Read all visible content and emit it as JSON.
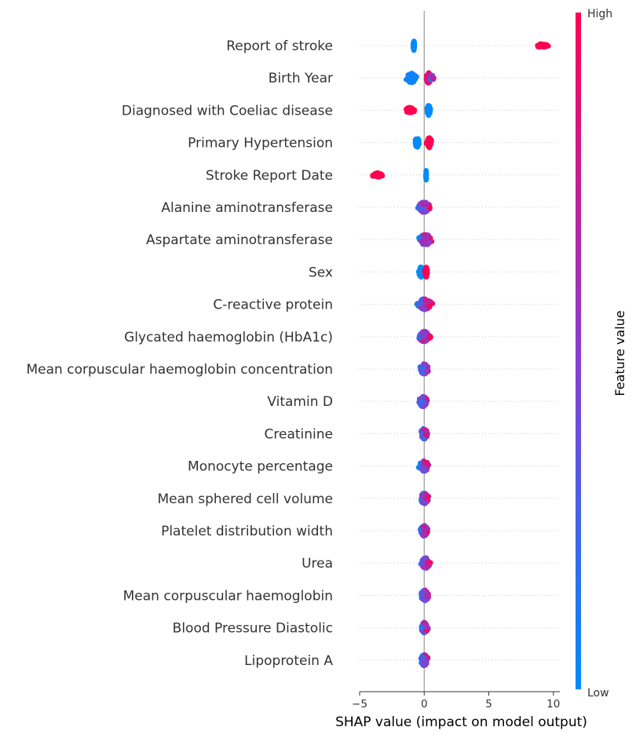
{
  "chart_data": {
    "type": "scatter",
    "subtype": "shap-beeswarm",
    "xlabel": "SHAP value (impact on model output)",
    "xlim": [
      -5,
      10.5
    ],
    "xticks": [
      -5,
      0,
      5,
      10
    ],
    "colorbar": {
      "title": "Feature value",
      "high_label": "High",
      "low_label": "Low",
      "high_color": "#ff0052",
      "mid_color": "#8a3cd0",
      "low_color": "#008bfb"
    },
    "grid": false,
    "features": [
      {
        "name": "Report of stroke",
        "clusters": [
          {
            "center": -0.8,
            "spread": 0.08,
            "width": 0.9,
            "color": 0.0,
            "n": 70
          },
          {
            "center": 9.1,
            "spread": 0.55,
            "width": 0.35,
            "color": 1.0,
            "n": 60
          }
        ]
      },
      {
        "name": "Birth Year",
        "clusters": [
          {
            "center": -1.0,
            "spread": 0.45,
            "width": 0.9,
            "color": 0.05,
            "n": 70
          },
          {
            "center": 0.35,
            "spread": 0.25,
            "width": 1.0,
            "color": 0.85,
            "n": 70
          },
          {
            "center": 0.6,
            "spread": 0.2,
            "width": 0.5,
            "color": 0.45,
            "n": 20
          }
        ]
      },
      {
        "name": "Diagnosed with Coeliac disease",
        "clusters": [
          {
            "center": -1.1,
            "spread": 0.4,
            "width": 0.55,
            "color": 1.0,
            "n": 50
          },
          {
            "center": 0.35,
            "spread": 0.15,
            "width": 1.0,
            "color": 0.0,
            "n": 90
          }
        ]
      },
      {
        "name": "Primary Hypertension",
        "clusters": [
          {
            "center": -0.55,
            "spread": 0.22,
            "width": 0.85,
            "color": 0.0,
            "n": 70
          },
          {
            "center": 0.4,
            "spread": 0.2,
            "width": 1.0,
            "color": 1.0,
            "n": 90
          }
        ]
      },
      {
        "name": "Stroke Report Date",
        "clusters": [
          {
            "center": -3.6,
            "spread": 0.5,
            "width": 0.4,
            "color": 1.0,
            "n": 60
          },
          {
            "center": 0.15,
            "spread": 0.03,
            "width": 1.0,
            "color": 0.0,
            "n": 60
          }
        ]
      },
      {
        "name": "Alanine aminotransferase",
        "clusters": [
          {
            "center": 0.0,
            "spread": 0.5,
            "width": 1.0,
            "color": 0.5,
            "n": 140
          }
        ]
      },
      {
        "name": "Aspartate aminotransferase",
        "clusters": [
          {
            "center": 0.1,
            "spread": 0.55,
            "width": 1.0,
            "color": 0.5,
            "n": 140
          }
        ]
      },
      {
        "name": "Sex",
        "clusters": [
          {
            "center": -0.25,
            "spread": 0.18,
            "width": 1.0,
            "color": 0.0,
            "n": 70
          },
          {
            "center": 0.15,
            "spread": 0.12,
            "width": 1.0,
            "color": 1.0,
            "n": 70
          }
        ]
      },
      {
        "name": "C-reactive protein",
        "clusters": [
          {
            "center": 0.0,
            "spread": 0.6,
            "width": 1.0,
            "color": 0.5,
            "n": 140
          }
        ]
      },
      {
        "name": "Glycated haemoglobin (HbA1c)",
        "clusters": [
          {
            "center": 0.0,
            "spread": 0.45,
            "width": 1.0,
            "color": 0.5,
            "n": 130
          }
        ]
      },
      {
        "name": "Mean corpuscular haemoglobin concentration",
        "clusters": [
          {
            "center": 0.0,
            "spread": 0.35,
            "width": 1.0,
            "color": 0.5,
            "n": 120
          }
        ]
      },
      {
        "name": "Vitamin D",
        "clusters": [
          {
            "center": -0.1,
            "spread": 0.35,
            "width": 1.0,
            "color": 0.5,
            "n": 120
          }
        ]
      },
      {
        "name": "Creatinine",
        "clusters": [
          {
            "center": 0.0,
            "spread": 0.3,
            "width": 1.0,
            "color": 0.5,
            "n": 110
          }
        ]
      },
      {
        "name": "Monocyte percentage",
        "clusters": [
          {
            "center": 0.0,
            "spread": 0.4,
            "width": 1.0,
            "color": 0.5,
            "n": 120
          }
        ]
      },
      {
        "name": "Mean sphered cell volume",
        "clusters": [
          {
            "center": 0.0,
            "spread": 0.35,
            "width": 1.0,
            "color": 0.5,
            "n": 120
          }
        ]
      },
      {
        "name": "Platelet distribution width",
        "clusters": [
          {
            "center": 0.0,
            "spread": 0.3,
            "width": 1.0,
            "color": 0.5,
            "n": 110
          }
        ]
      },
      {
        "name": "Urea",
        "clusters": [
          {
            "center": 0.1,
            "spread": 0.35,
            "width": 1.0,
            "color": 0.5,
            "n": 120
          }
        ]
      },
      {
        "name": "Mean corpuscular haemoglobin",
        "clusters": [
          {
            "center": 0.05,
            "spread": 0.35,
            "width": 1.0,
            "color": 0.5,
            "n": 120
          }
        ]
      },
      {
        "name": "Blood Pressure Diastolic",
        "clusters": [
          {
            "center": 0.0,
            "spread": 0.3,
            "width": 1.0,
            "color": 0.5,
            "n": 110
          }
        ]
      },
      {
        "name": "Lipoprotein A",
        "clusters": [
          {
            "center": 0.0,
            "spread": 0.35,
            "width": 1.0,
            "color": 0.5,
            "n": 120
          }
        ]
      }
    ]
  }
}
